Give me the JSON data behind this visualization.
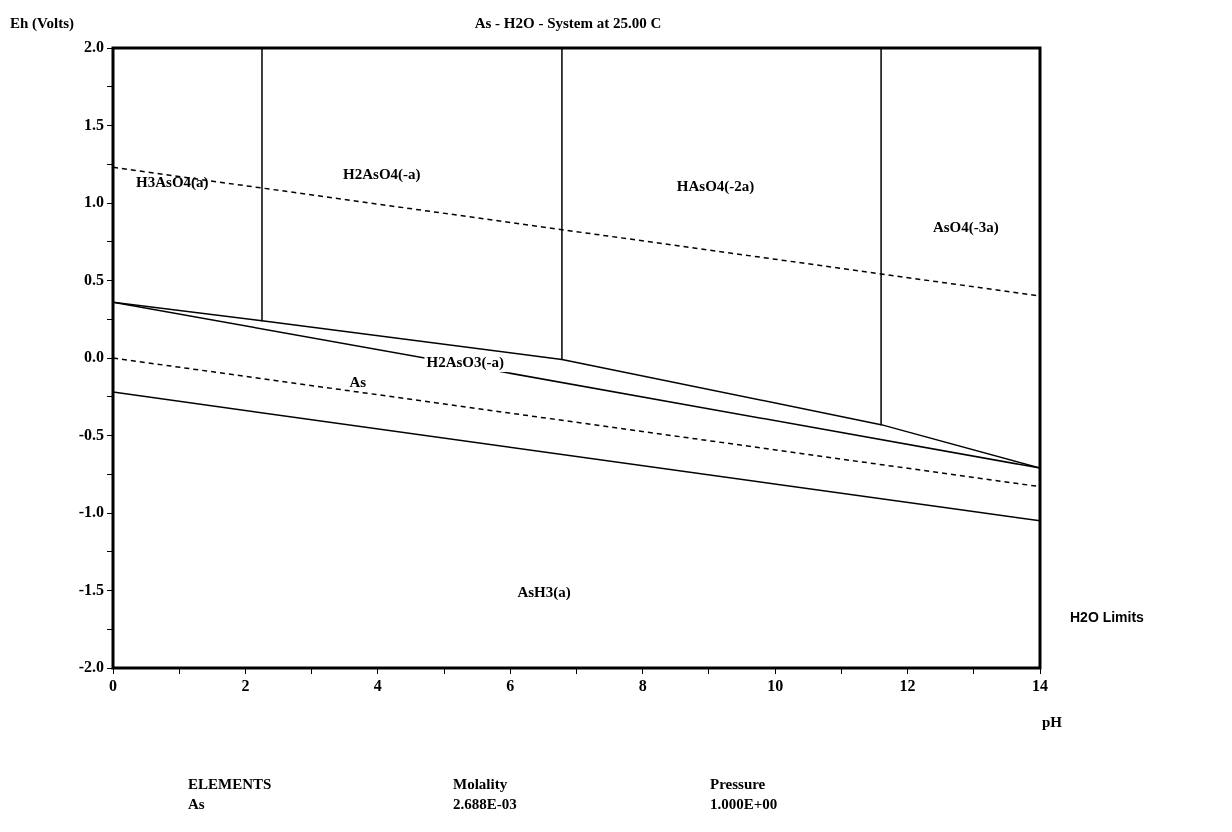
{
  "chart_data": {
    "type": "line",
    "title": "As - H2O - System at 25.00 C",
    "xlabel": "pH",
    "ylabel": "Eh (Volts)",
    "xlim": [
      0,
      14
    ],
    "ylim": [
      -2,
      2
    ],
    "xticks": [
      0,
      {
        "value": 1,
        "label": null
      },
      2,
      {
        "value": 3,
        "label": null
      },
      4,
      {
        "value": 5,
        "label": null
      },
      6,
      {
        "value": 7,
        "label": null
      },
      8,
      {
        "value": 9,
        "label": null
      },
      10,
      {
        "value": 11,
        "label": null
      },
      12,
      {
        "value": 13,
        "label": null
      },
      14
    ],
    "yticks": [
      {
        "value": -2,
        "label": "-2.0"
      },
      {
        "value": -1.75,
        "label": null
      },
      {
        "value": -1.5,
        "label": "-1.5"
      },
      {
        "value": -1.25,
        "label": null
      },
      {
        "value": -1,
        "label": "-1.0"
      },
      {
        "value": -0.75,
        "label": null
      },
      {
        "value": -0.5,
        "label": "-0.5"
      },
      {
        "value": -0.25,
        "label": null
      },
      {
        "value": 0,
        "label": "0.0"
      },
      {
        "value": 0.25,
        "label": null
      },
      {
        "value": 0.5,
        "label": "0.5"
      },
      {
        "value": 0.75,
        "label": null
      },
      {
        "value": 1,
        "label": "1.0"
      },
      {
        "value": 1.25,
        "label": null
      },
      {
        "value": 1.5,
        "label": "1.5"
      },
      {
        "value": 1.75,
        "label": null
      },
      {
        "value": 2,
        "label": "2.0"
      }
    ],
    "grid": false,
    "legend": false,
    "marker": "none",
    "series": [
      {
        "color": "#000000",
        "line_style": "dashed",
        "x": [
          0,
          14
        ],
        "values": [
          1.23,
          0.4
        ]
      },
      {
        "color": "#000000",
        "line_style": "dashed",
        "x": [
          0,
          14
        ],
        "values": [
          0,
          -0.83
        ]
      },
      {
        "color": "#000000",
        "line_style": "solid",
        "x": [
          2.25,
          2.25
        ],
        "values": [
          2,
          0.24
        ]
      },
      {
        "color": "#000000",
        "line_style": "solid",
        "x": [
          6.78,
          6.78
        ],
        "values": [
          2,
          -0.01
        ]
      },
      {
        "color": "#000000",
        "line_style": "solid",
        "x": [
          11.6,
          11.6
        ],
        "values": [
          2,
          -0.43
        ]
      },
      {
        "color": "#000000",
        "line_style": "solid",
        "x": [
          0,
          2.25,
          6.78,
          11.6,
          14
        ],
        "values": [
          0.36,
          0.24,
          -0.01,
          -0.43,
          -0.71
        ]
      },
      {
        "color": "#000000",
        "line_style": "solid",
        "x": [
          0,
          14
        ],
        "values": [
          0.36,
          -0.71
        ]
      },
      {
        "color": "#000000",
        "line_style": "solid",
        "x": [
          0,
          14
        ],
        "values": [
          -0.22,
          -1.05
        ]
      }
    ],
    "annotations": [
      "H3AsO4(a)",
      "H2AsO4(-a)",
      "HAsO4(-2a)",
      "AsO4(-3a)",
      "H2AsO3(-a)",
      "As",
      "AsH3(a)",
      "H2O Limits",
      "ELEMENTS",
      "Molality",
      "Pressure",
      "As",
      "2.688E-03",
      "1.000E+00"
    ]
  }
}
